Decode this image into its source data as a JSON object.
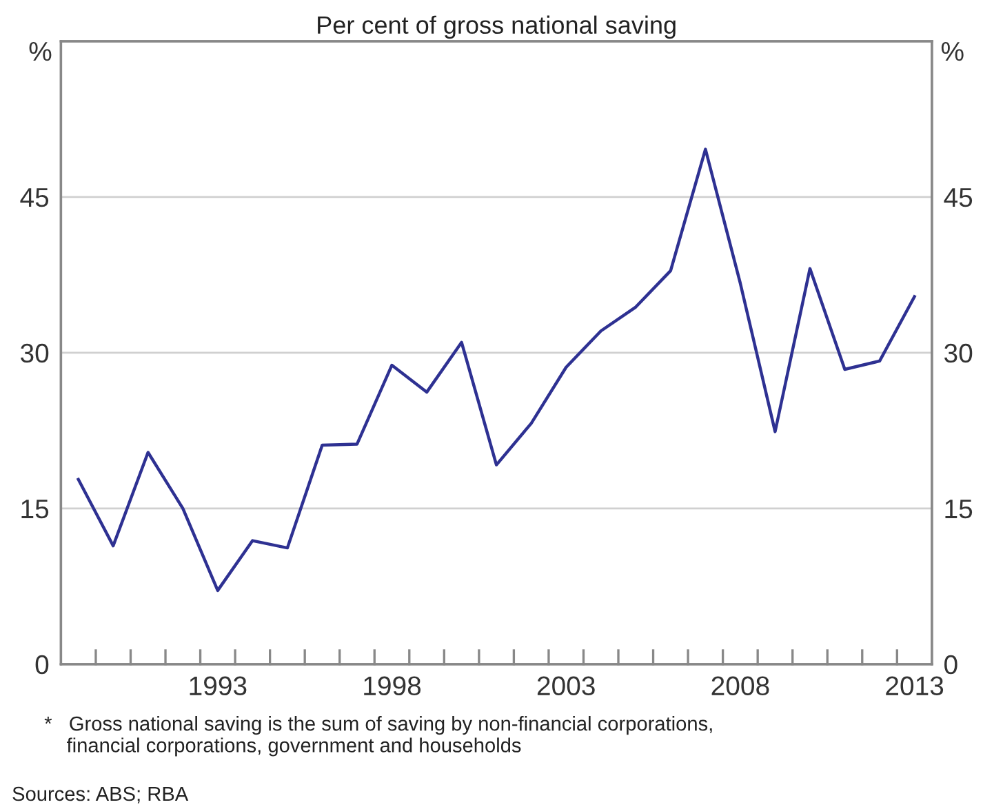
{
  "chart_data": {
    "type": "line",
    "title": "Per cent of gross national saving",
    "ylabel": "%",
    "y2label": "%",
    "x": [
      1989,
      1990,
      1991,
      1992,
      1993,
      1994,
      1995,
      1996,
      1997,
      1998,
      1999,
      2000,
      2001,
      2002,
      2003,
      2004,
      2005,
      2006,
      2007,
      2008,
      2009,
      2010,
      2011,
      2012,
      2013
    ],
    "series": [
      {
        "color": "#2e3192",
        "values": [
          17.8,
          11.4,
          20.4,
          15.0,
          7.1,
          11.9,
          11.2,
          21.1,
          21.2,
          28.8,
          26.2,
          31.0,
          19.2,
          23.2,
          28.6,
          32.1,
          34.4,
          37.9,
          49.6,
          36.7,
          22.4,
          38.1,
          28.4,
          29.2,
          35.4
        ]
      }
    ],
    "xlim": [
      1988.5,
      2013.5
    ],
    "xticks": [
      {
        "value": 1989.5,
        "label": null
      },
      {
        "value": 1990.5,
        "label": null
      },
      {
        "value": 1991.5,
        "label": null
      },
      {
        "value": 1992.5,
        "label": null
      },
      {
        "value": 1993.5,
        "label": null
      },
      {
        "value": 1994.5,
        "label": null
      },
      {
        "value": 1995.5,
        "label": null
      },
      {
        "value": 1996.5,
        "label": null
      },
      {
        "value": 1997.5,
        "label": null
      },
      {
        "value": 1998.5,
        "label": null
      },
      {
        "value": 1999.5,
        "label": null
      },
      {
        "value": 2000.5,
        "label": null
      },
      {
        "value": 2001.5,
        "label": null
      },
      {
        "value": 2002.5,
        "label": null
      },
      {
        "value": 2003.5,
        "label": null
      },
      {
        "value": 2004.5,
        "label": null
      },
      {
        "value": 2005.5,
        "label": null
      },
      {
        "value": 2006.5,
        "label": null
      },
      {
        "value": 2007.5,
        "label": null
      },
      {
        "value": 2008.5,
        "label": null
      },
      {
        "value": 2009.5,
        "label": null
      },
      {
        "value": 2010.5,
        "label": null
      },
      {
        "value": 2011.5,
        "label": null
      },
      {
        "value": 2012.5,
        "label": null
      },
      1993,
      1998,
      2003,
      2008,
      2013
    ],
    "ylim": [
      0,
      60
    ],
    "yticks": [
      0,
      15,
      30,
      45
    ],
    "y2lim": [
      0,
      60
    ],
    "y2ticks": [
      0,
      15,
      30,
      45
    ],
    "grid": "y",
    "line_style": "solid",
    "marker": "none",
    "annotations": [
      "*\tGross national saving is the sum of saving by non-financial corporations,\n\tfinancial corporations, government and households",
      "Sources: ABS; RBA"
    ]
  }
}
